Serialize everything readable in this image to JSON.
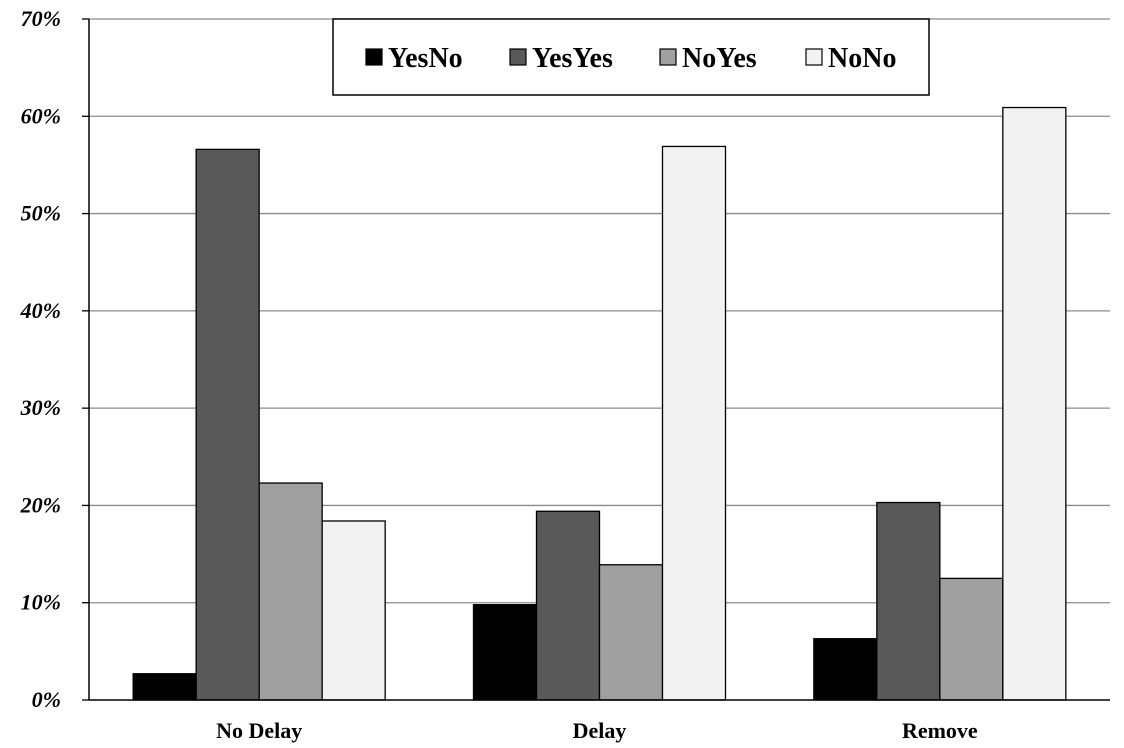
{
  "chart_data": {
    "type": "bar",
    "categories": [
      "No Delay",
      "Delay",
      "Remove"
    ],
    "series": [
      {
        "name": "YesNo",
        "values": [
          2.7,
          9.8,
          6.3
        ],
        "color": "#000000"
      },
      {
        "name": "YesYes",
        "values": [
          56.6,
          19.4,
          20.3
        ],
        "color": "#595959"
      },
      {
        "name": "NoYes",
        "values": [
          22.3,
          13.9,
          12.5
        ],
        "color": "#a0a0a0"
      },
      {
        "name": "NoNo",
        "values": [
          18.4,
          56.9,
          60.9
        ],
        "color": "#f2f2f2"
      }
    ],
    "ylim": [
      0,
      70
    ],
    "yticks": [
      "0%",
      "10%",
      "20%",
      "30%",
      "40%",
      "50%",
      "60%",
      "70%"
    ],
    "grid": true,
    "legend_position": "top-center",
    "title": "",
    "xlabel": "",
    "ylabel": ""
  }
}
